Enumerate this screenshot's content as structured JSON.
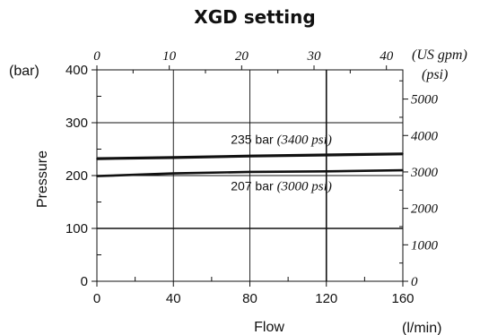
{
  "chart_data": {
    "type": "line",
    "title": "XGD setting",
    "xlabel": "Flow",
    "xunit": "(l/min)",
    "ylabel": "Pressure",
    "yunit": "(bar)",
    "xlim": [
      0,
      160
    ],
    "ylim": [
      0,
      400
    ],
    "x_ticks": [
      "0",
      "40",
      "80",
      "120",
      "160"
    ],
    "y_ticks": [
      "0",
      "100",
      "200",
      "300",
      "400"
    ],
    "secondary_x": {
      "unit": "(US gpm)",
      "range": [
        0,
        42.27
      ],
      "ticks": [
        {
          "value": 0,
          "label": "0"
        },
        {
          "value": 10,
          "label": "10"
        },
        {
          "value": 20,
          "label": "20"
        },
        {
          "value": 30,
          "label": "30"
        },
        {
          "value": 40,
          "label": "40"
        }
      ]
    },
    "secondary_y": {
      "unit": "(psi)",
      "range": [
        0,
        5801
      ],
      "ticks": [
        {
          "value": 0,
          "label": "0"
        },
        {
          "value": 1000,
          "label": "1000"
        },
        {
          "value": 2000,
          "label": "2000"
        },
        {
          "value": 3000,
          "label": "3000"
        },
        {
          "value": 4000,
          "label": "4000"
        },
        {
          "value": 5000,
          "label": "5000"
        }
      ]
    },
    "series": [
      {
        "x": [
          0,
          40,
          80,
          120,
          160
        ],
        "values": [
          232,
          234,
          237,
          239,
          241
        ]
      },
      {
        "x": [
          0,
          40,
          80,
          120,
          160
        ],
        "values": [
          199,
          204,
          207,
          208,
          210
        ]
      }
    ],
    "annotations": [
      {
        "text_a": "235 bar ",
        "text_b": "(3400 psi)",
        "x": 70,
        "y": 260
      },
      {
        "text_a": "207 bar ",
        "text_b": "(3000 psi)",
        "x": 70,
        "y": 172
      }
    ],
    "grid": true,
    "grid_x": [
      0,
      40,
      80,
      120,
      160
    ],
    "grid_y": [
      0,
      100,
      200,
      300,
      400
    ]
  }
}
